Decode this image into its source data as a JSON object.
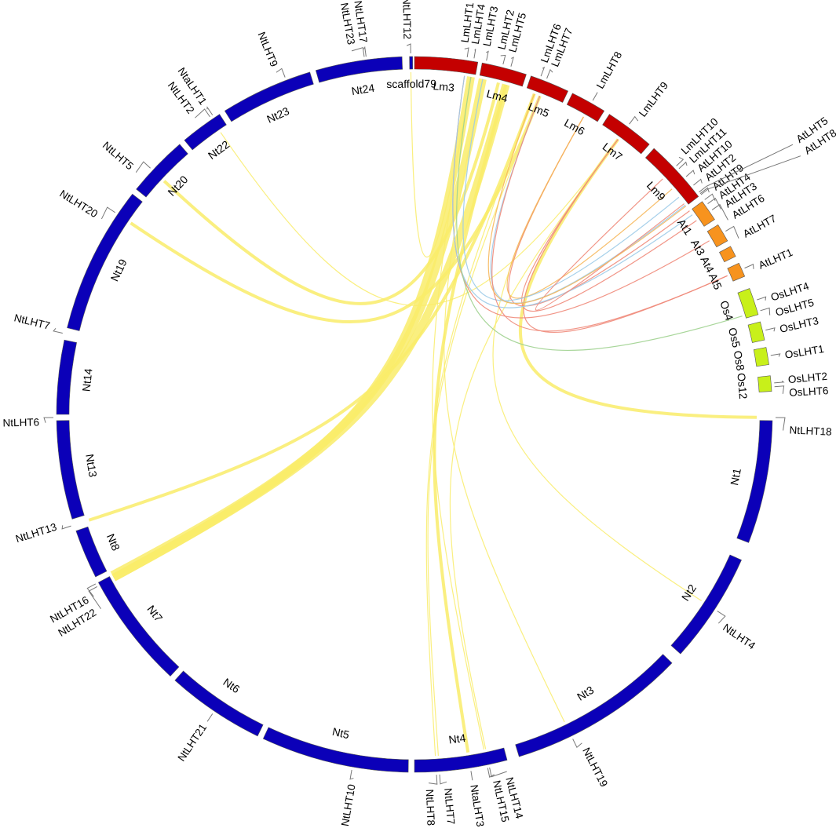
{
  "colors": {
    "Nt": "#0b00b8",
    "Lm": "#c40000",
    "At": "#f7931e",
    "Os": "#c8f01a",
    "link_nt": "#f9ec6a",
    "link_lm_red": "#f08a7a",
    "link_lm_blue": "#9ccbe8",
    "link_lm_green": "#9fd18f",
    "link_lm_orange": "#f6b75a"
  },
  "chromosomes": [
    {
      "id": "Nt1",
      "label": "Nt1",
      "species": "Nt"
    },
    {
      "id": "Nt2",
      "label": "Nt2",
      "species": "Nt"
    },
    {
      "id": "Nt3",
      "label": "Nt3",
      "species": "Nt"
    },
    {
      "id": "Nt4",
      "label": "Nt4",
      "species": "Nt"
    },
    {
      "id": "Nt5",
      "label": "Nt5",
      "species": "Nt"
    },
    {
      "id": "Nt6",
      "label": "Nt6",
      "species": "Nt"
    },
    {
      "id": "Nt7",
      "label": "Nt7",
      "species": "Nt"
    },
    {
      "id": "Nt8",
      "label": "Nt8",
      "species": "Nt"
    },
    {
      "id": "Nt13",
      "label": "Nt13",
      "species": "Nt"
    },
    {
      "id": "Nt14",
      "label": "Nt14",
      "species": "Nt"
    },
    {
      "id": "Nt19",
      "label": "Nt19",
      "species": "Nt"
    },
    {
      "id": "Nt20",
      "label": "Nt20",
      "species": "Nt"
    },
    {
      "id": "Nt22",
      "label": "Nt22",
      "species": "Nt"
    },
    {
      "id": "Nt23",
      "label": "Nt23",
      "species": "Nt"
    },
    {
      "id": "Nt24",
      "label": "Nt24",
      "species": "Nt"
    },
    {
      "id": "scaffold79",
      "label": "scaffold79",
      "species": "Nt"
    },
    {
      "id": "Lm3",
      "label": "Lm3",
      "species": "Lm"
    },
    {
      "id": "Lm4",
      "label": "Lm4",
      "species": "Lm"
    },
    {
      "id": "Lm5",
      "label": "Lm5",
      "species": "Lm"
    },
    {
      "id": "Lm6",
      "label": "Lm6",
      "species": "Lm"
    },
    {
      "id": "Lm7",
      "label": "Lm7",
      "species": "Lm"
    },
    {
      "id": "Lm9",
      "label": "Lm9",
      "species": "Lm"
    },
    {
      "id": "At1",
      "label": "At1",
      "species": "At"
    },
    {
      "id": "At3",
      "label": "At3",
      "species": "At"
    },
    {
      "id": "At4",
      "label": "At4",
      "species": "At"
    },
    {
      "id": "At5",
      "label": "At5",
      "species": "At"
    },
    {
      "id": "Os4",
      "label": "Os4",
      "species": "Os"
    },
    {
      "id": "Os5",
      "label": "Os5",
      "species": "Os"
    },
    {
      "id": "Os8",
      "label": "Os8",
      "species": "Os"
    },
    {
      "id": "Os12",
      "label": "Os12",
      "species": "Os"
    }
  ],
  "genes": [
    {
      "id": "NtLHT18",
      "label": "NtLHT18",
      "chr": "Nt1"
    },
    {
      "id": "NtLHT4",
      "label": "NtLHT4",
      "chr": "Nt2"
    },
    {
      "id": "NtLHT19",
      "label": "NtLHT19",
      "chr": "Nt3"
    },
    {
      "id": "NtLHT14",
      "label": "NtLHT14",
      "chr": "Nt4"
    },
    {
      "id": "NtLHT15",
      "label": "NtLHT15",
      "chr": "Nt4"
    },
    {
      "id": "NtaLHT3",
      "label": "NtaLHT3",
      "chr": "Nt4"
    },
    {
      "id": "NtLHT7",
      "label": "NtLHT7",
      "chr": "Nt4"
    },
    {
      "id": "NtLHT8",
      "label": "NtLHT8",
      "chr": "Nt4"
    },
    {
      "id": "NtLHT10",
      "label": "NtLHT10",
      "chr": "Nt5"
    },
    {
      "id": "NtLHT21",
      "label": "NtLHT21",
      "chr": "Nt6"
    },
    {
      "id": "NtLHT16",
      "label": "NtLHT16",
      "chr": "Nt7"
    },
    {
      "id": "NtLHT22",
      "label": "NtLHT22",
      "chr": "Nt7"
    },
    {
      "id": "NtLHT13",
      "label": "NtLHT13",
      "chr": "Nt8"
    },
    {
      "id": "NtLHT6",
      "label": "NtLHT6",
      "chr": "Nt13"
    },
    {
      "id": "NtLHT7b",
      "label": "NtLHT7",
      "chr": "Nt14"
    },
    {
      "id": "NtLHT20",
      "label": "NtLHT20",
      "chr": "Nt19"
    },
    {
      "id": "NtLHT5",
      "label": "NtLHT5",
      "chr": "Nt20"
    },
    {
      "id": "NtLHT2",
      "label": "NtLHT2",
      "chr": "Nt22"
    },
    {
      "id": "NtaLHT1",
      "label": "NtaLHT1",
      "chr": "Nt22"
    },
    {
      "id": "NtLHT9",
      "label": "NtLHT9",
      "chr": "Nt23"
    },
    {
      "id": "NtLHT23",
      "label": "NtLHT23",
      "chr": "Nt24"
    },
    {
      "id": "NtLHT17",
      "label": "NtLHT17",
      "chr": "Nt24"
    },
    {
      "id": "NtLHT12",
      "label": "NtLHT12",
      "chr": "scaffold79"
    },
    {
      "id": "LmLHT1",
      "label": "LmLHT1",
      "chr": "Lm3"
    },
    {
      "id": "LmLHT4",
      "label": "LmLHT4",
      "chr": "Lm4"
    },
    {
      "id": "LmLHT3",
      "label": "LmLHT3",
      "chr": "Lm4"
    },
    {
      "id": "LmLHT2",
      "label": "LmLHT2",
      "chr": "Lm4"
    },
    {
      "id": "LmLHT5",
      "label": "LmLHT5",
      "chr": "Lm4"
    },
    {
      "id": "LmLHT6",
      "label": "LmLHT6",
      "chr": "Lm5"
    },
    {
      "id": "LmLHT7",
      "label": "LmLHT7",
      "chr": "Lm5"
    },
    {
      "id": "LmLHT8",
      "label": "LmLHT8",
      "chr": "Lm6"
    },
    {
      "id": "LmLHT9",
      "label": "LmLHT9",
      "chr": "Lm7"
    },
    {
      "id": "LmLHT10",
      "label": "LmLHT10",
      "chr": "Lm9"
    },
    {
      "id": "LmLHT11",
      "label": "LmLHT11",
      "chr": "Lm9"
    },
    {
      "id": "AtLHT10",
      "label": "AtLHT10",
      "chr": "At1"
    },
    {
      "id": "AtLHT2",
      "label": "AtLHT2",
      "chr": "At1"
    },
    {
      "id": "AtLHT9",
      "label": "AtLHT9",
      "chr": "At1"
    },
    {
      "id": "AtLHT4",
      "label": "AtLHT4",
      "chr": "At1"
    },
    {
      "id": "AtLHT3",
      "label": "AtLHT3",
      "chr": "At1"
    },
    {
      "id": "AtLHT6",
      "label": "AtLHT6",
      "chr": "At1"
    },
    {
      "id": "AtLHT5",
      "label": "AtLHT5",
      "chr": "At1"
    },
    {
      "id": "AtLHT8",
      "label": "AtLHT8",
      "chr": "At1"
    },
    {
      "id": "AtLHT7",
      "label": "AtLHT7",
      "chr": "At3"
    },
    {
      "id": "AtLHT1",
      "label": "AtLHT1",
      "chr": "At5"
    },
    {
      "id": "OsLHT4",
      "label": "OsLHT4",
      "chr": "Os4"
    },
    {
      "id": "OsLHT5",
      "label": "OsLHT5",
      "chr": "Os4"
    },
    {
      "id": "OsLHT3",
      "label": "OsLHT3",
      "chr": "Os5"
    },
    {
      "id": "OsLHT1",
      "label": "OsLHT1",
      "chr": "Os8"
    },
    {
      "id": "OsLHT2",
      "label": "OsLHT2",
      "chr": "Os12"
    },
    {
      "id": "OsLHT6",
      "label": "OsLHT6",
      "chr": "Os12"
    }
  ],
  "links": [
    {
      "from": "NtLHT22",
      "to": "LmLHT4",
      "color": "link_nt",
      "weight": "thick"
    },
    {
      "from": "NtLHT16",
      "to": "LmLHT3",
      "color": "link_nt",
      "weight": "thick"
    },
    {
      "from": "NtLHT22",
      "to": "LmLHT5",
      "color": "link_nt",
      "weight": "thick"
    },
    {
      "from": "NtLHT13",
      "to": "LmLHT6",
      "color": "link_nt",
      "weight": "medium"
    },
    {
      "from": "NtLHT20",
      "to": "LmLHT7",
      "color": "link_nt",
      "weight": "medium"
    },
    {
      "from": "NtLHT18",
      "to": "LmLHT9",
      "color": "link_nt",
      "weight": "medium"
    },
    {
      "from": "NtaLHT3",
      "to": "LmLHT5",
      "color": "link_nt",
      "weight": "medium"
    },
    {
      "from": "NtLHT14",
      "to": "LmLHT9",
      "color": "link_nt",
      "weight": "thin"
    },
    {
      "from": "NtLHT4",
      "to": "LmLHT8",
      "color": "link_nt",
      "weight": "thin"
    },
    {
      "from": "NtLHT19",
      "to": "LmLHT3",
      "color": "link_nt",
      "weight": "thin"
    },
    {
      "from": "NtLHT7",
      "to": "LmLHT7",
      "color": "link_nt",
      "weight": "thin"
    },
    {
      "from": "NtLHT8",
      "to": "LmLHT6",
      "color": "link_nt",
      "weight": "thin"
    },
    {
      "from": "NtLHT5",
      "to": "LmLHT2",
      "color": "link_nt",
      "weight": "medium"
    },
    {
      "from": "NtLHT2",
      "to": "LmLHT9",
      "color": "link_nt",
      "weight": "thin"
    },
    {
      "from": "NtLHT12",
      "to": "LmLHT4",
      "color": "link_nt",
      "weight": "thin"
    },
    {
      "from": "NtLHT15",
      "to": "LmLHT4",
      "color": "link_nt",
      "weight": "thin"
    },
    {
      "from": "LmLHT8",
      "to": "AtLHT4",
      "color": "link_lm_red",
      "weight": "thin"
    },
    {
      "from": "LmLHT8",
      "to": "AtLHT10",
      "color": "link_lm_orange",
      "weight": "thin"
    },
    {
      "from": "LmLHT9",
      "to": "AtLHT6",
      "color": "link_lm_red",
      "weight": "thin"
    },
    {
      "from": "LmLHT9",
      "to": "AtLHT1",
      "color": "link_lm_red",
      "weight": "thin"
    },
    {
      "from": "LmLHT1",
      "to": "AtLHT7",
      "color": "link_lm_red",
      "weight": "thin"
    },
    {
      "from": "LmLHT1",
      "to": "AtLHT3",
      "color": "link_lm_blue",
      "weight": "thin"
    },
    {
      "from": "LmLHT4",
      "to": "OsLHT5",
      "color": "link_lm_green",
      "weight": "thin"
    },
    {
      "from": "LmLHT3",
      "to": "AtLHT2",
      "color": "link_lm_blue",
      "weight": "thin"
    },
    {
      "from": "LmLHT7",
      "to": "AtLHT9",
      "color": "link_lm_blue",
      "weight": "thin"
    },
    {
      "from": "LmLHT7",
      "to": "AtLHT1",
      "color": "link_lm_red",
      "weight": "thin"
    },
    {
      "from": "LmLHT10",
      "to": "AtLHT5",
      "color": "link_lm_red",
      "weight": "thin"
    },
    {
      "from": "LmLHT6",
      "to": "AtLHT8",
      "color": "link_lm_orange",
      "weight": "thin"
    }
  ]
}
